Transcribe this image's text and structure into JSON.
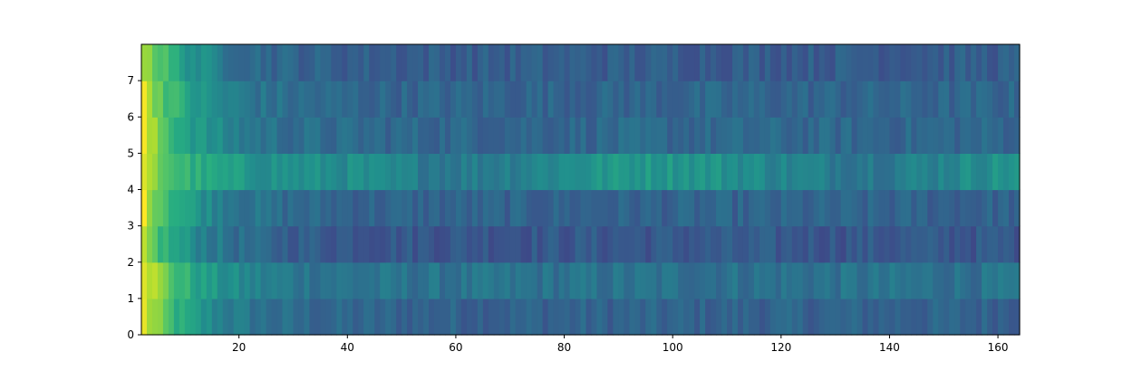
{
  "chart_data": {
    "type": "heatmap",
    "title": "",
    "xlabel": "",
    "ylabel": "",
    "colormap": "viridis",
    "x_range": [
      2,
      164
    ],
    "y_range": [
      0,
      8
    ],
    "rows": 8,
    "x_ticks": [
      "20",
      "40",
      "60",
      "80",
      "100",
      "120",
      "140",
      "160"
    ],
    "y_ticks": [
      "0",
      "1",
      "2",
      "3",
      "4",
      "5",
      "6",
      "7"
    ],
    "cells": [
      [
        0.02,
        1.0
      ],
      [
        0.03,
        0.9
      ],
      [
        0.1,
        0.75
      ],
      [
        0.12,
        0.65
      ],
      [
        0.15,
        0.55
      ],
      [
        0.2,
        0.5
      ],
      [
        0.22,
        0.46
      ],
      [
        0.3,
        0.42
      ],
      [
        0.35,
        0.4
      ],
      [
        0.4,
        0.38
      ],
      [
        0.45,
        0.36
      ],
      [
        0.5,
        0.34
      ],
      [
        0.55,
        0.33
      ],
      [
        0.6,
        0.32
      ],
      [
        0.65,
        0.31
      ],
      [
        0.7,
        0.3
      ],
      [
        0.75,
        0.29
      ],
      [
        0.8,
        0.28
      ],
      [
        0.85,
        0.27
      ],
      [
        0.9,
        0.26
      ],
      [
        0.95,
        0.25
      ],
      [
        1.0,
        0.24
      ]
    ],
    "row_profiles": [
      {
        "row": 0,
        "start": 0.95,
        "tail": 0.32
      },
      {
        "row": 1,
        "start": 1.0,
        "tail": 0.38
      },
      {
        "row": 2,
        "start": 0.85,
        "tail": 0.28
      },
      {
        "row": 3,
        "start": 0.95,
        "tail": 0.32
      },
      {
        "row": 4,
        "start": 0.9,
        "tail": 0.48
      },
      {
        "row": 5,
        "start": 0.95,
        "tail": 0.34
      },
      {
        "row": 6,
        "start": 0.95,
        "tail": 0.33
      },
      {
        "row": 7,
        "start": 0.9,
        "tail": 0.3
      }
    ]
  }
}
